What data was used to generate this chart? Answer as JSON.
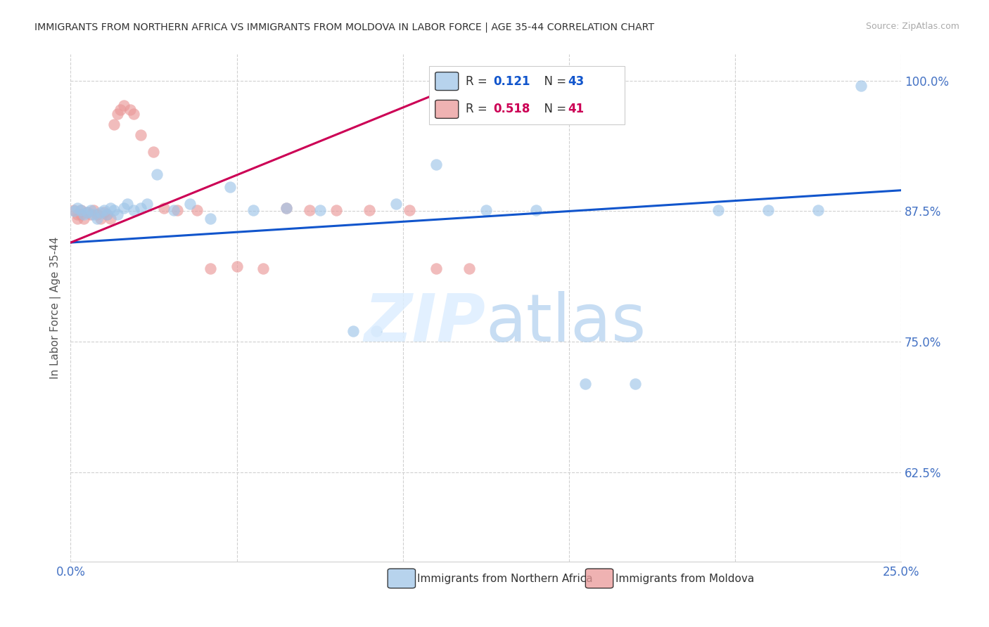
{
  "title": "IMMIGRANTS FROM NORTHERN AFRICA VS IMMIGRANTS FROM MOLDOVA IN LABOR FORCE | AGE 35-44 CORRELATION CHART",
  "source_text": "Source: ZipAtlas.com",
  "ylabel": "In Labor Force | Age 35-44",
  "legend_blue": "Immigrants from Northern Africa",
  "legend_pink": "Immigrants from Moldova",
  "blue_R": 0.121,
  "blue_N": 43,
  "pink_R": 0.518,
  "pink_N": 41,
  "xlim": [
    0.0,
    0.25
  ],
  "ylim": [
    0.54,
    1.025
  ],
  "yticks": [
    0.625,
    0.75,
    0.875,
    1.0
  ],
  "ytick_labels": [
    "62.5%",
    "75.0%",
    "87.5%",
    "100.0%"
  ],
  "xtick_positions": [
    0.0,
    0.05,
    0.1,
    0.15,
    0.2,
    0.25
  ],
  "xtick_labels": [
    "0.0%",
    "",
    "",
    "",
    "",
    "25.0%"
  ],
  "blue_scatter_color": "#9fc5e8",
  "pink_scatter_color": "#ea9999",
  "blue_line_color": "#1155cc",
  "pink_line_color": "#cc0055",
  "axis_label_color": "#4472c4",
  "title_color": "#333333",
  "grid_color": "#d0d0d0",
  "blue_line_x0": 0.0,
  "blue_line_y0": 0.845,
  "blue_line_x1": 0.25,
  "blue_line_y1": 0.895,
  "pink_line_x0": 0.0,
  "pink_line_y0": 0.845,
  "pink_line_x1": 0.12,
  "pink_line_y1": 1.0,
  "blue_x": [
    0.001,
    0.002,
    0.003,
    0.004,
    0.005,
    0.006,
    0.007,
    0.008,
    0.009,
    0.01,
    0.011,
    0.012,
    0.013,
    0.014,
    0.016,
    0.017,
    0.019,
    0.021,
    0.023,
    0.026,
    0.031,
    0.036,
    0.042,
    0.048,
    0.055,
    0.065,
    0.075,
    0.085,
    0.092,
    0.098,
    0.11,
    0.125,
    0.14,
    0.155,
    0.17,
    0.195,
    0.21,
    0.225,
    0.238
  ],
  "blue_y": [
    0.875,
    0.878,
    0.876,
    0.872,
    0.874,
    0.876,
    0.872,
    0.868,
    0.874,
    0.876,
    0.872,
    0.878,
    0.876,
    0.872,
    0.878,
    0.882,
    0.876,
    0.878,
    0.882,
    0.91,
    0.876,
    0.882,
    0.868,
    0.898,
    0.876,
    0.878,
    0.876,
    0.76,
    0.76,
    0.882,
    0.92,
    0.876,
    0.876,
    0.71,
    0.71,
    0.876,
    0.876,
    0.876,
    0.995
  ],
  "pink_x": [
    0.001,
    0.002,
    0.002,
    0.003,
    0.003,
    0.004,
    0.005,
    0.006,
    0.007,
    0.008,
    0.009,
    0.01,
    0.011,
    0.012,
    0.013,
    0.014,
    0.015,
    0.016,
    0.018,
    0.019,
    0.021,
    0.025,
    0.028,
    0.032,
    0.038,
    0.042,
    0.05,
    0.058,
    0.065,
    0.072,
    0.08,
    0.09,
    0.102,
    0.11,
    0.12
  ],
  "pink_y": [
    0.876,
    0.872,
    0.868,
    0.876,
    0.872,
    0.868,
    0.874,
    0.872,
    0.876,
    0.872,
    0.868,
    0.874,
    0.872,
    0.868,
    0.958,
    0.968,
    0.972,
    0.976,
    0.972,
    0.968,
    0.948,
    0.932,
    0.878,
    0.876,
    0.876,
    0.82,
    0.822,
    0.82,
    0.878,
    0.876,
    0.876,
    0.876,
    0.876,
    0.82,
    0.82
  ]
}
